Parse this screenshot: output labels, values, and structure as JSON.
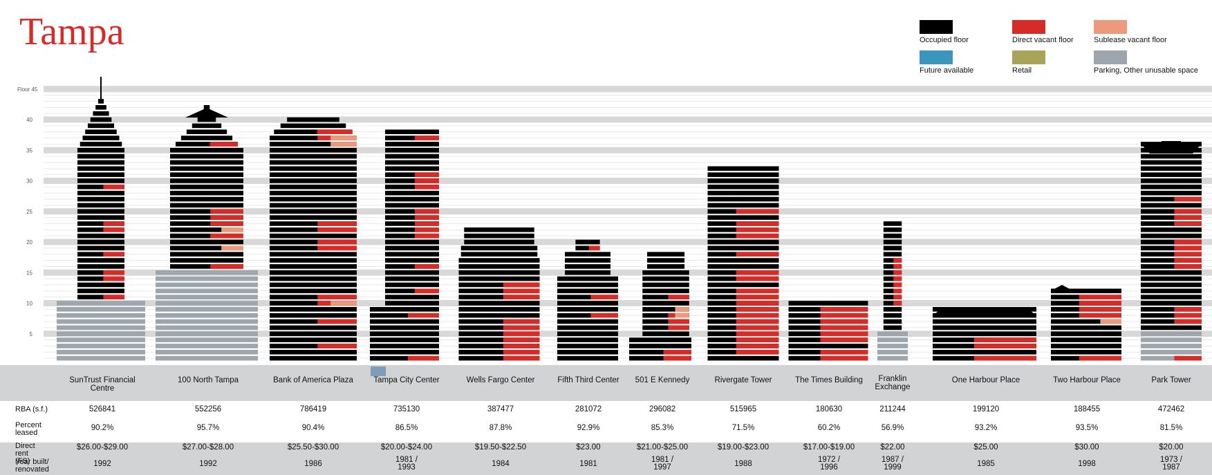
{
  "title": "Tampa",
  "legend": [
    {
      "label": "Occupied floor",
      "color": "#000000"
    },
    {
      "label": "Direct vacant floor",
      "color": "#d62b27"
    },
    {
      "label": "Sublease vacant floor",
      "color": "#ec9a7b"
    },
    {
      "label": "Future available",
      "color": "#3a96bd"
    },
    {
      "label": "Retail",
      "color": "#a8a45a"
    },
    {
      "label": "Parking, Other unusable space",
      "color": "#9ea6ad"
    }
  ],
  "row_labels": {
    "rba": "RBA (s.f.)",
    "leased": "Percent leased",
    "rent": "Direct rent (FS)",
    "year": "Year built/ renovated"
  },
  "chart_data": {
    "type": "bar",
    "ylabel": "Floor",
    "y_ticks": [
      "5",
      "10",
      "15",
      "20",
      "25",
      "30",
      "35",
      "40",
      "Floor 45"
    ],
    "ylim": [
      0,
      45
    ],
    "grid": true,
    "categories": [
      "SunTrust Financial Centre",
      "100 North Tampa",
      "Bank of America Plaza",
      "Tampa City Center",
      "Wells Fargo Center",
      "Fifth Third Center",
      "501 E Kennedy",
      "Rivergate Tower",
      "The Times Building",
      "Franklin Exchange",
      "One Harbour Place",
      "Two Harbour Place",
      "Park Tower"
    ],
    "series": [
      {
        "name": "RBA (s.f.)",
        "values": [
          "526841",
          "552256",
          "786419",
          "735130",
          "387477",
          "281072",
          "296082",
          "515965",
          "180630",
          "211244",
          "199120",
          "188455",
          "472462"
        ]
      },
      {
        "name": "Percent leased",
        "values": [
          "90.2%",
          "95.7%",
          "90.4%",
          "86.5%",
          "87.8%",
          "92.9%",
          "85.3%",
          "71.5%",
          "60.2%",
          "56.9%",
          "93.2%",
          "93.5%",
          "81.5%"
        ]
      },
      {
        "name": "Direct rent (FS)",
        "values": [
          "$26.00-$29.00",
          "$27.00-$28.00",
          "$25.50-$30.00",
          "$20.00-$24.00",
          "$19.50-$22.50",
          "$23.00",
          "$21.00-$25.00",
          "$19.00-$23.00",
          "$17.00-$19.00",
          "$22.00",
          "$25.00",
          "$30.00",
          "$20.00"
        ]
      },
      {
        "name": "Year built/ renovated",
        "values": [
          "1992",
          "1992",
          "1986",
          "1981 / 1993",
          "1984",
          "1981",
          "1981 / 1997",
          "1988",
          "1972 / 1996",
          "1987 / 1999",
          "1985",
          "1998",
          "1973 / 1987"
        ]
      }
    ],
    "floors": [
      {
        "building": "SunTrust Financial Centre",
        "total": 43,
        "parking": [
          1,
          2,
          3,
          4,
          5,
          6,
          7,
          8,
          9,
          10
        ],
        "direct_vacant": [
          11,
          14,
          15,
          18,
          22,
          23,
          29
        ],
        "sublease_vacant": [],
        "spire": true
      },
      {
        "building": "100 North Tampa",
        "total": 42,
        "parking": [
          1,
          2,
          3,
          4,
          5,
          6,
          7,
          8,
          9,
          10,
          11,
          12,
          13,
          14,
          15
        ],
        "direct_vacant": [
          16,
          21,
          23,
          24,
          25,
          36
        ],
        "sublease_vacant": [
          19,
          22
        ]
      },
      {
        "building": "Bank of America Plaza",
        "total": 40,
        "parking": [],
        "direct_vacant": [
          3,
          7,
          10,
          11,
          19,
          20,
          22,
          23,
          37,
          38
        ],
        "sublease_vacant": [
          10,
          36,
          37
        ]
      },
      {
        "building": "Tampa City Center",
        "total": 38,
        "parking": [],
        "direct_vacant": [
          1,
          8,
          12,
          16,
          21,
          22,
          23,
          24,
          25,
          29,
          30,
          31,
          37
        ],
        "sublease_vacant": []
      },
      {
        "building": "Wells Fargo Center",
        "total": 22,
        "parking": [],
        "direct_vacant": [
          1,
          2,
          3,
          4,
          5,
          6,
          7,
          11,
          12,
          13
        ],
        "sublease_vacant": []
      },
      {
        "building": "Fifth Third Center",
        "total": 20,
        "parking": [],
        "direct_vacant": [
          8,
          11,
          19
        ],
        "sublease_vacant": []
      },
      {
        "building": "501 E Kennedy",
        "total": 18,
        "parking": [],
        "direct_vacant": [
          1,
          2,
          6,
          7,
          8,
          11
        ],
        "sublease_vacant": [
          8,
          9
        ]
      },
      {
        "building": "Rivergate Tower",
        "total": 32,
        "parking": [],
        "direct_vacant": [
          2,
          3,
          4,
          5,
          6,
          7,
          8,
          9,
          10,
          11,
          12,
          14,
          15,
          18,
          21,
          22,
          23,
          25
        ],
        "sublease_vacant": []
      },
      {
        "building": "The Times Building",
        "total": 10,
        "parking": [],
        "direct_vacant": [
          1,
          2,
          4,
          5,
          6,
          7,
          8,
          9
        ],
        "sublease_vacant": []
      },
      {
        "building": "Franklin Exchange",
        "total": 23,
        "parking": [
          1,
          2,
          3,
          4,
          5
        ],
        "direct_vacant": [
          10,
          11,
          12,
          13,
          14,
          15,
          16,
          17
        ],
        "sublease_vacant": []
      },
      {
        "building": "One Harbour Place",
        "total": 9,
        "parking": [],
        "direct_vacant": [
          1,
          3,
          4
        ],
        "sublease_vacant": []
      },
      {
        "building": "Two Harbour Place",
        "total": 12,
        "parking": [],
        "direct_vacant": [
          1,
          8,
          9,
          10,
          11
        ],
        "sublease_vacant": [
          7
        ]
      },
      {
        "building": "Park Tower",
        "total": 36,
        "parking": [
          1,
          2,
          3,
          4,
          5
        ],
        "direct_vacant": [
          1,
          7,
          8,
          9,
          16,
          17,
          18,
          19,
          20,
          23,
          24,
          25,
          27
        ],
        "sublease_vacant": []
      }
    ]
  }
}
